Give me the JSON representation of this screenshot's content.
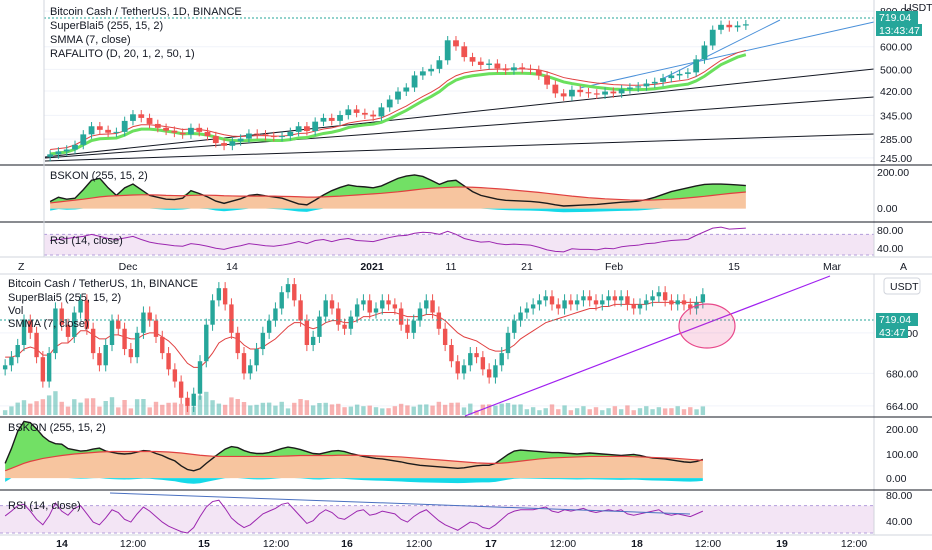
{
  "colors": {
    "up": "#26a69a",
    "down": "#ef5350",
    "ema_green": "#6be05d",
    "smma_red": "#e04040",
    "fill_orange": "#f7c59f",
    "fill_green": "#72e065",
    "fill_cyan": "#15d9e8",
    "rsi_purple": "#9c27b0",
    "rsi_band": "#f3e5f5",
    "trend_black": "#131722",
    "trend_blue": "#4a90d9",
    "trend_purple": "#a020f0",
    "price_badge": "#26a69a",
    "circle": "#e8488a"
  },
  "top_chart": {
    "legend": [
      "Bitcoin Cash / TetherUS, 1D, BINANCE",
      "SuperBlai5 (255, 15, 2)",
      "SMMA (7, close)",
      "RAFALITO (D, 20, 1, 2, 50, 1)"
    ],
    "currency": "USDT",
    "price_badge": "719.04",
    "countdown_badge": "13:43:47",
    "y_ticks": [
      "800.00",
      "600.00",
      "500.00",
      "420.00",
      "345.00",
      "285.00",
      "245.00"
    ],
    "bskon_label": "BSKON (255, 15, 2)",
    "bskon_ticks": [
      "200.00",
      "0.00"
    ],
    "rsi_label": "RSI (14, close)",
    "rsi_ticks": [
      "80.00",
      "40.00"
    ],
    "x_ticks": [
      "Dec",
      "14",
      "2021",
      "11",
      "21",
      "Feb",
      "15",
      "Mar"
    ],
    "z_label": "Z",
    "a_label": "A"
  },
  "bottom_chart": {
    "legend": [
      "Bitcoin Cash / TetherUS, 1h, BINANCE",
      "SuperBlai5 (255, 15, 2)",
      "Vol",
      "SMMA (7, close)"
    ],
    "currency": "USDT",
    "price_badge": "719.04",
    "countdown_badge": "43:47",
    "y_ticks": [
      "700.00",
      "680.00",
      "664.00"
    ],
    "bskon_label": "BSKON (255, 15, 2)",
    "bskon_ticks": [
      "200.00",
      "100.00",
      "0.00"
    ],
    "rsi_label": "RSI (14, close)",
    "rsi_ticks": [
      "80.00",
      "40.00"
    ],
    "x_ticks": [
      "14",
      "12:00",
      "15",
      "12:00",
      "16",
      "12:00",
      "17",
      "12:00",
      "18",
      "12:00",
      "19",
      "12:00"
    ]
  },
  "chart_data": [
    {
      "type": "candlestick",
      "title": "Bitcoin Cash / TetherUS, 1D, BINANCE",
      "y_scale": "log",
      "ylim": [
        235,
        820
      ],
      "x_labels": [
        "Dec",
        "14",
        "2021",
        "11",
        "21",
        "Feb",
        "15",
        "Mar"
      ],
      "close": [
        252,
        258,
        262,
        272,
        296,
        316,
        307,
        300,
        302,
        330,
        348,
        338,
        322,
        312,
        305,
        300,
        296,
        312,
        302,
        292,
        276,
        270,
        280,
        286,
        298,
        296,
        292,
        290,
        292,
        302,
        316,
        304,
        328,
        338,
        330,
        346,
        362,
        352,
        347,
        342,
        368,
        392,
        418,
        432,
        476,
        492,
        502,
        538,
        632,
        602,
        552,
        532,
        518,
        524,
        504,
        496,
        508,
        502,
        498,
        476,
        442,
        412,
        402,
        424,
        416,
        412,
        408,
        418,
        412,
        426,
        432,
        436,
        446,
        452,
        466,
        476,
        482,
        488,
        542,
        606,
        688,
        716,
        702,
        712,
        719
      ],
      "smma_close": [
        262,
        264,
        266,
        272,
        282,
        292,
        296,
        297,
        298,
        305,
        315,
        320,
        320,
        318,
        315,
        312,
        308,
        309,
        308,
        305,
        300,
        295,
        292,
        291,
        292,
        293,
        293,
        292,
        292,
        294,
        298,
        299,
        304,
        309,
        312,
        317,
        324,
        328,
        331,
        333,
        338,
        348,
        360,
        372,
        387,
        402,
        416,
        433,
        457,
        475,
        486,
        492,
        496,
        500,
        501,
        501,
        502,
        502,
        501,
        498,
        490,
        479,
        468,
        462,
        457,
        452,
        448,
        445,
        442,
        441,
        440,
        440,
        441,
        443,
        447,
        452,
        456,
        460,
        472,
        490,
        514,
        538,
        555,
        572,
        583
      ],
      "bskon_ylim": [
        -60,
        220
      ],
      "bskon_main": [
        38,
        60,
        50,
        55,
        100,
        150,
        160,
        110,
        70,
        110,
        130,
        100,
        70,
        60,
        50,
        48,
        55,
        95,
        80,
        62,
        40,
        28,
        40,
        52,
        70,
        75,
        68,
        62,
        55,
        40,
        25,
        20,
        45,
        72,
        95,
        112,
        125,
        118,
        115,
        110,
        120,
        140,
        160,
        172,
        178,
        170,
        150,
        128,
        145,
        150,
        120,
        90,
        70,
        60,
        50,
        44,
        42,
        40,
        38,
        34,
        28,
        20,
        14,
        16,
        18,
        20,
        22,
        26,
        30,
        34,
        36,
        40,
        48,
        60,
        75,
        90,
        100,
        110,
        120,
        128,
        130,
        130,
        128,
        125,
        122
      ],
      "bskon_signal": [
        30,
        35,
        40,
        45,
        50,
        56,
        62,
        66,
        68,
        70,
        72,
        73,
        73,
        72,
        70,
        69,
        68,
        70,
        71,
        71,
        70,
        68,
        67,
        66,
        66,
        66,
        66,
        66,
        65,
        64,
        63,
        61,
        61,
        62,
        64,
        66,
        69,
        72,
        75,
        78,
        81,
        85,
        89,
        94,
        99,
        104,
        108,
        110,
        112,
        114,
        114,
        113,
        111,
        108,
        105,
        102,
        98,
        94,
        90,
        86,
        81,
        76,
        71,
        66,
        62,
        58,
        55,
        52,
        50,
        48,
        46,
        45,
        45,
        46,
        48,
        50,
        53,
        57,
        61,
        65,
        70,
        75,
        80,
        84,
        88
      ],
      "rsi": [
        58,
        60,
        62,
        64,
        66,
        70,
        66,
        62,
        60,
        63,
        66,
        60,
        55,
        52,
        50,
        48,
        47,
        52,
        50,
        47,
        43,
        41,
        45,
        48,
        52,
        50,
        48,
        47,
        49,
        52,
        56,
        52,
        58,
        60,
        56,
        60,
        62,
        58,
        57,
        56,
        60,
        64,
        67,
        68,
        72,
        74,
        73,
        70,
        76,
        70,
        62,
        58,
        55,
        56,
        52,
        50,
        51,
        50,
        49,
        45,
        40,
        37,
        36,
        42,
        41,
        41,
        40,
        43,
        42,
        46,
        48,
        49,
        52,
        53,
        56,
        58,
        59,
        60,
        68,
        75,
        82,
        84,
        80,
        81,
        82
      ],
      "rsi_ylim": [
        30,
        90
      ]
    },
    {
      "type": "candlestick",
      "title": "Bitcoin Cash / TetherUS, 1h, BINANCE",
      "ylim": [
        660,
        728
      ],
      "x_labels": [
        "14",
        "12:00",
        "15",
        "12:00",
        "16",
        "12:00",
        "17",
        "12:00",
        "18",
        "12:00",
        "19",
        "12:00"
      ],
      "close": [
        684,
        688,
        694,
        706,
        700,
        688,
        676,
        690,
        712,
        704,
        698,
        710,
        716,
        702,
        690,
        684,
        694,
        706,
        702,
        692,
        688,
        700,
        710,
        706,
        698,
        690,
        682,
        676,
        668,
        664,
        670,
        686,
        704,
        716,
        722,
        714,
        700,
        690,
        680,
        684,
        692,
        700,
        706,
        712,
        720,
        724,
        716,
        706,
        694,
        698,
        708,
        716,
        712,
        704,
        702,
        708,
        714,
        716,
        710,
        712,
        716,
        714,
        712,
        704,
        700,
        706,
        712,
        716,
        710,
        702,
        694,
        686,
        680,
        684,
        690,
        688,
        682,
        678,
        684,
        690,
        700,
        706,
        710,
        712,
        714,
        716,
        718,
        714,
        712,
        716,
        714,
        716,
        718,
        716,
        714,
        716,
        718,
        716,
        718,
        714,
        712,
        714,
        716,
        718,
        720,
        716,
        714,
        716,
        714,
        712,
        715,
        719
      ],
      "smma_close": [
        688,
        688,
        689,
        692,
        693,
        692,
        689,
        689,
        693,
        695,
        695,
        698,
        701,
        701,
        699,
        697,
        697,
        699,
        699,
        698,
        697,
        697,
        699,
        700,
        700,
        698,
        696,
        693,
        689,
        685,
        683,
        683,
        686,
        690,
        695,
        697,
        698,
        697,
        694,
        692,
        692,
        693,
        695,
        697,
        700,
        703,
        705,
        705,
        703,
        702,
        703,
        705,
        706,
        706,
        705,
        705,
        706,
        708,
        708,
        709,
        710,
        710,
        710,
        709,
        708,
        708,
        708,
        709,
        709,
        708,
        706,
        703,
        700,
        698,
        697,
        696,
        694,
        692,
        691,
        691,
        692,
        694,
        697,
        699,
        701,
        703,
        705,
        706,
        707,
        708,
        709,
        710,
        711,
        712,
        712,
        713,
        713,
        714,
        714,
        714,
        714,
        714,
        714,
        715,
        715,
        715,
        715,
        715,
        715,
        715,
        715,
        715
      ],
      "bskon_ylim": [
        -40,
        240
      ],
      "bskon_main": [
        60,
        120,
        190,
        230,
        225,
        200,
        170,
        150,
        140,
        138,
        120,
        115,
        110,
        112,
        118,
        122,
        110,
        105,
        100,
        98,
        100,
        106,
        112,
        110,
        100,
        92,
        80,
        70,
        50,
        35,
        30,
        38,
        60,
        80,
        100,
        118,
        128,
        124,
        112,
        104,
        100,
        100,
        104,
        112,
        120,
        126,
        122,
        116,
        108,
        100,
        98,
        104,
        110,
        112,
        108,
        100,
        94,
        88,
        84,
        80,
        78,
        74,
        70,
        66,
        60,
        56,
        52,
        50,
        48,
        46,
        44,
        42,
        40,
        42,
        46,
        50,
        52,
        52,
        60,
        78,
        96,
        110,
        114,
        112,
        110,
        108,
        106,
        104,
        104,
        102,
        100,
        98,
        100,
        102,
        100,
        98,
        96,
        94,
        92,
        94,
        96,
        92,
        86,
        82,
        80,
        78,
        74,
        70,
        66,
        64,
        68,
        76
      ],
      "bskon_signal": [
        30,
        40,
        50,
        60,
        68,
        74,
        80,
        84,
        88,
        92,
        95,
        98,
        100,
        102,
        104,
        106,
        107,
        108,
        108,
        108,
        108,
        108,
        108,
        108,
        108,
        107,
        106,
        104,
        102,
        99,
        96,
        93,
        91,
        89,
        88,
        88,
        88,
        88,
        88,
        88,
        88,
        88,
        88,
        88,
        89,
        90,
        91,
        92,
        92,
        92,
        92,
        92,
        92,
        93,
        93,
        93,
        93,
        92,
        91,
        90,
        89,
        88,
        87,
        86,
        84,
        82,
        80,
        78,
        76,
        74,
        72,
        70,
        68,
        66,
        64,
        62,
        61,
        60,
        60,
        61,
        63,
        66,
        69,
        72,
        75,
        78,
        80,
        82,
        83,
        84,
        85,
        86,
        87,
        88,
        88,
        88,
        88,
        88,
        88,
        88,
        87,
        86,
        85,
        84,
        83,
        82,
        81,
        80,
        78,
        76,
        74,
        72
      ],
      "rsi": [
        55,
        62,
        70,
        72,
        62,
        50,
        42,
        55,
        74,
        62,
        56,
        66,
        70,
        58,
        46,
        42,
        52,
        64,
        60,
        50,
        46,
        58,
        68,
        62,
        54,
        46,
        40,
        36,
        32,
        30,
        38,
        54,
        68,
        76,
        78,
        66,
        52,
        44,
        38,
        42,
        50,
        58,
        62,
        66,
        72,
        74,
        64,
        54,
        44,
        48,
        58,
        64,
        60,
        52,
        50,
        56,
        62,
        64,
        56,
        58,
        62,
        60,
        58,
        50,
        46,
        54,
        60,
        64,
        56,
        48,
        42,
        38,
        34,
        40,
        46,
        44,
        38,
        36,
        42,
        50,
        58,
        62,
        64,
        64,
        64,
        66,
        68,
        62,
        60,
        64,
        62,
        64,
        66,
        62,
        60,
        62,
        64,
        62,
        64,
        58,
        56,
        58,
        60,
        62,
        64,
        58,
        56,
        58,
        56,
        54,
        58,
        62
      ],
      "rsi_ylim": [
        30,
        90
      ]
    }
  ]
}
